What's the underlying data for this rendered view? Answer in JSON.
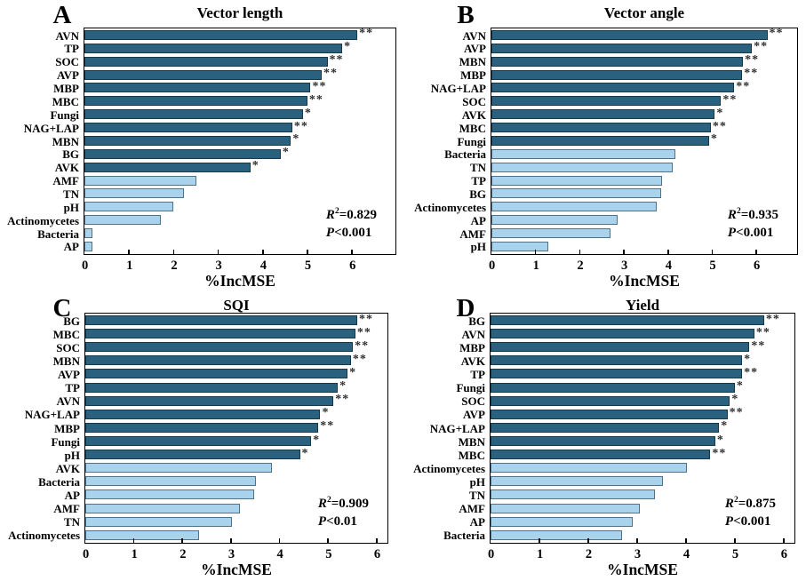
{
  "figure": {
    "background": "#ffffff",
    "shared_xlabel": "%IncMSE"
  },
  "colors": {
    "dark_bar": "#2a617f",
    "dark_bar_border": "#16394a",
    "light_bar": "#a9d3ec",
    "light_bar_border": "#4f7288",
    "axis": "#000000",
    "text": "#000000",
    "significance_marker": "#2f2f2f"
  },
  "chart_data": [
    {
      "panel": "A",
      "type": "bar",
      "orientation": "horizontal",
      "title": "Vector length",
      "xlabel": "%IncMSE",
      "xticks": [
        "0",
        "1",
        "2",
        "3",
        "4",
        "5",
        "6"
      ],
      "xlim": [
        0,
        6.95
      ],
      "grid": false,
      "categories": [
        "AVN",
        "TP",
        "SOC",
        "AVP",
        "MBP",
        "MBC",
        "Fungi",
        "NAG+LAP",
        "MBN",
        "BG",
        "AVK",
        "AMF",
        "TN",
        "pH",
        "Actinomycetes",
        "Bacteria",
        "AP"
      ],
      "values": [
        6.12,
        5.78,
        5.45,
        5.32,
        5.07,
        5.0,
        4.9,
        4.66,
        4.63,
        4.4,
        3.72,
        2.52,
        2.24,
        1.99,
        1.71,
        0.18,
        0.18
      ],
      "significance": [
        "**",
        "*",
        "**",
        "**",
        "**",
        "**",
        "*",
        "**",
        "*",
        "*",
        "*",
        "",
        "",
        "",
        "",
        "",
        ""
      ],
      "dark_count": 11,
      "stats": {
        "r2_var": "R",
        "r2_sup": "2",
        "r2_rest": "=0.829",
        "p_var": "P",
        "p_rest": "<0.001"
      }
    },
    {
      "panel": "B",
      "type": "bar",
      "orientation": "horizontal",
      "title": "Vector angle",
      "xlabel": "%IncMSE",
      "xticks": [
        "0",
        "1",
        "2",
        "3",
        "4",
        "5",
        "6"
      ],
      "xlim": [
        0,
        6.9
      ],
      "grid": false,
      "categories": [
        "AVN",
        "AVP",
        "MBN",
        "MBP",
        "NAG+LAP",
        "SOC",
        "AVK",
        "MBC",
        "Fungi",
        "Bacteria",
        "TN",
        "TP",
        "BG",
        "Actinomycetes",
        "AP",
        "AMF",
        "pH"
      ],
      "values": [
        6.25,
        5.9,
        5.7,
        5.68,
        5.5,
        5.2,
        5.06,
        4.97,
        4.93,
        4.16,
        4.1,
        3.87,
        3.85,
        3.74,
        2.85,
        2.7,
        1.28
      ],
      "significance": [
        "**",
        "**",
        "**",
        "**",
        "**",
        "**",
        "*",
        "**",
        "*",
        "",
        "",
        "",
        "",
        "",
        "",
        "",
        ""
      ],
      "dark_count": 9,
      "stats": {
        "r2_var": "R",
        "r2_sup": "2",
        "r2_rest": "=0.935",
        "p_var": "P",
        "p_rest": "<0.001"
      }
    },
    {
      "panel": "C",
      "type": "bar",
      "orientation": "horizontal",
      "title": "SQI",
      "xlabel": "%IncMSE",
      "xticks": [
        "0",
        "1",
        "2",
        "3",
        "4",
        "5",
        "6"
      ],
      "xlim": [
        0,
        6.2
      ],
      "grid": false,
      "categories": [
        "BG",
        "MBC",
        "SOC",
        "MBN",
        "AVP",
        "TP",
        "AVN",
        "NAG+LAP",
        "MBP",
        "Fungi",
        "pH",
        "AVK",
        "Bacteria",
        "AP",
        "AMF",
        "TN",
        "Actinomycetes"
      ],
      "values": [
        5.6,
        5.56,
        5.51,
        5.47,
        5.4,
        5.2,
        5.11,
        4.84,
        4.8,
        4.65,
        4.42,
        3.85,
        3.51,
        3.47,
        3.18,
        3.02,
        2.35
      ],
      "significance": [
        "**",
        "**",
        "**",
        "**",
        "*",
        "*",
        "**",
        "*",
        "**",
        "*",
        "*",
        "",
        "",
        "",
        "",
        "",
        ""
      ],
      "dark_count": 11,
      "stats": {
        "r2_var": "R",
        "r2_sup": "2",
        "r2_rest": "=0.909",
        "p_var": "P",
        "p_rest": "<0.01"
      }
    },
    {
      "panel": "D",
      "type": "bar",
      "orientation": "horizontal",
      "title": "Yield",
      "xlabel": "%IncMSE",
      "xticks": [
        "0",
        "1",
        "2",
        "3",
        "4",
        "5",
        "6"
      ],
      "xlim": [
        0,
        6.2
      ],
      "grid": false,
      "categories": [
        "BG",
        "AVN",
        "MBP",
        "AVK",
        "TP",
        "Fungi",
        "SOC",
        "AVP",
        "NAG+LAP",
        "MBN",
        "MBC",
        "Actinomycetes",
        "pH",
        "TN",
        "AMF",
        "AP",
        "Bacteria"
      ],
      "values": [
        5.6,
        5.4,
        5.3,
        5.15,
        5.15,
        5.0,
        4.9,
        4.85,
        4.68,
        4.6,
        4.5,
        4.02,
        3.53,
        3.36,
        3.06,
        2.91,
        2.69
      ],
      "significance": [
        "**",
        "**",
        "**",
        "*",
        "**",
        "*",
        "*",
        "**",
        "*",
        "*",
        "**",
        "",
        "",
        "",
        "",
        "",
        ""
      ],
      "dark_count": 11,
      "stats": {
        "r2_var": "R",
        "r2_sup": "2",
        "r2_rest": "=0.875",
        "p_var": "P",
        "p_rest": "<0.001"
      }
    }
  ]
}
